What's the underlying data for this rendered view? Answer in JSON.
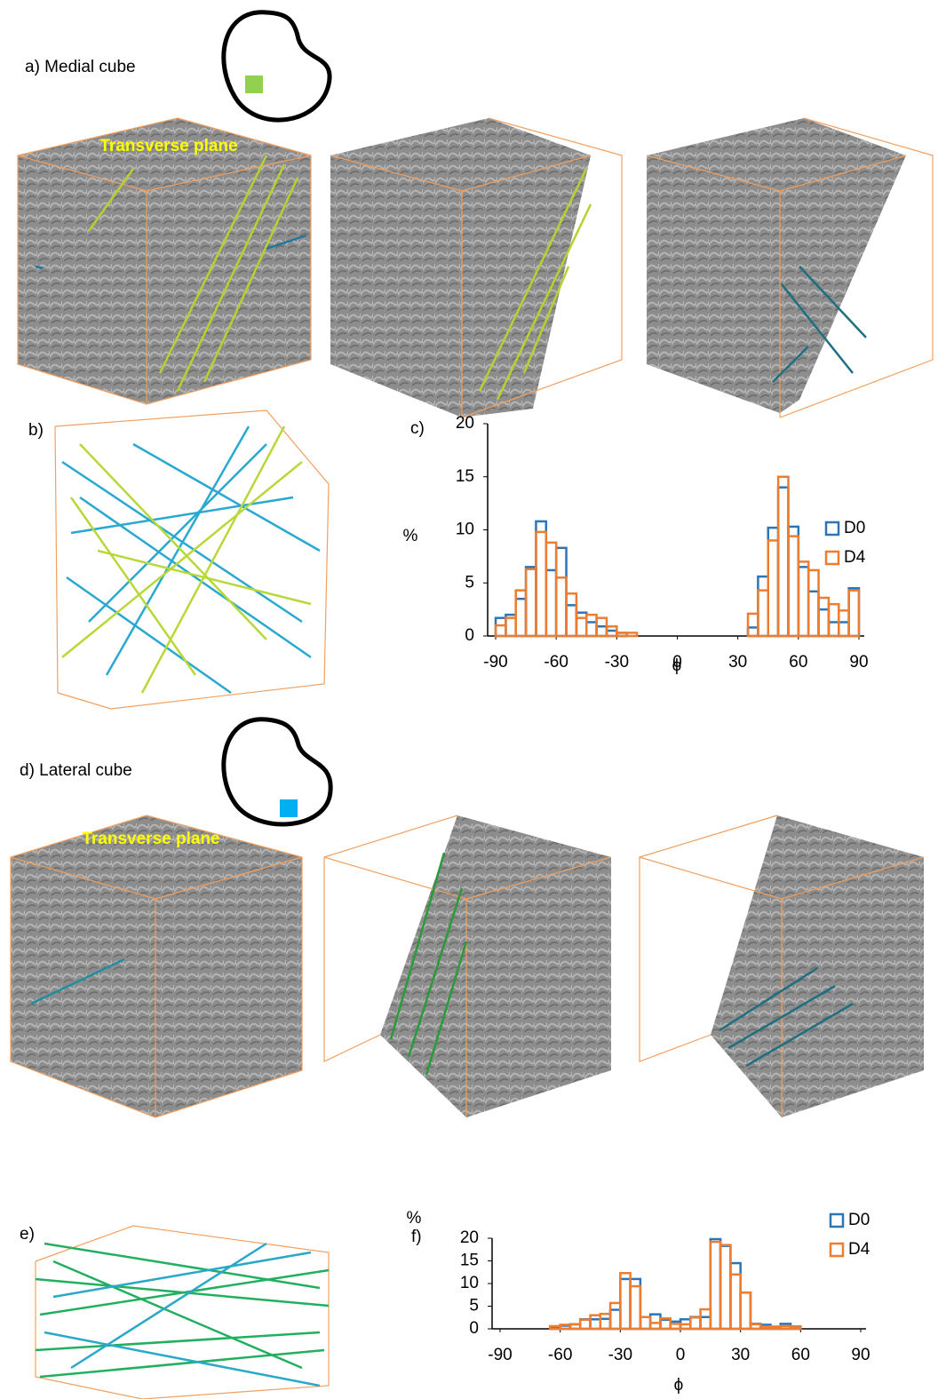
{
  "panels": {
    "a": "a) Medial cube",
    "transverse_1": "Transverse plane",
    "b": "b)",
    "d": "d) Lateral cube",
    "transverse_2": "Transverse plane",
    "e": "e)"
  },
  "chart_data": [
    {
      "type": "histogram",
      "label": "c)",
      "x_label": "ϕ",
      "y_label": "%",
      "bins": [
        -90,
        -85,
        -80,
        -75,
        -70,
        -65,
        -60,
        -55,
        -50,
        -45,
        -40,
        -35,
        -30,
        -25,
        -20,
        -15,
        -10,
        -5,
        0,
        5,
        10,
        15,
        20,
        25,
        30,
        35,
        40,
        45,
        50,
        55,
        60,
        65,
        70,
        75,
        80,
        85,
        90
      ],
      "series": [
        {
          "name": "D0",
          "color": "#2e75b6",
          "values": [
            1.7,
            2.0,
            3.5,
            6.5,
            10.8,
            6.2,
            8.3,
            2.9,
            2.2,
            1.3,
            0.9,
            0.5,
            0.3,
            0,
            0,
            0,
            0,
            0,
            0,
            0,
            0,
            0,
            0,
            0,
            0,
            0.8,
            5.6,
            10.2,
            14.0,
            10.3,
            6.5,
            4.2,
            2.5,
            1.3,
            1.3,
            4.5
          ]
        },
        {
          "name": "D4",
          "color": "#ed7d31",
          "values": [
            1.0,
            1.7,
            4.3,
            6.3,
            9.8,
            8.8,
            5.5,
            4.0,
            1.7,
            2.0,
            1.7,
            0.9,
            0.3,
            0.3,
            0,
            0,
            0,
            0,
            0,
            0,
            0,
            0,
            0,
            0,
            0,
            2.1,
            4.3,
            9.0,
            15.0,
            9.4,
            7.0,
            6.2,
            3.6,
            3.0,
            2.4,
            4.3
          ]
        }
      ],
      "xlim": [
        -90,
        90
      ],
      "xticks": [
        -90,
        -60,
        -30,
        0,
        30,
        60,
        90
      ],
      "ylim": [
        0,
        20
      ],
      "yticks": [
        0,
        5,
        10,
        15,
        20
      ],
      "legend": "right"
    },
    {
      "type": "histogram",
      "label": "f)",
      "x_label": "ϕ",
      "y_label": "%",
      "bins": [
        -90,
        -85,
        -80,
        -75,
        -70,
        -65,
        -60,
        -55,
        -50,
        -45,
        -40,
        -35,
        -30,
        -25,
        -20,
        -15,
        -10,
        -5,
        0,
        5,
        10,
        15,
        20,
        25,
        30,
        35,
        40,
        45,
        50,
        55,
        60,
        65,
        70,
        75,
        80,
        85,
        90
      ],
      "series": [
        {
          "name": "D0",
          "color": "#2e75b6",
          "values": [
            0,
            0,
            0,
            0,
            0,
            0.4,
            0.7,
            1.0,
            2.1,
            2.1,
            2.2,
            4.2,
            11.0,
            11.0,
            2.6,
            3.2,
            2.0,
            1.6,
            2.1,
            2.6,
            2.6,
            19.8,
            18.3,
            14.5,
            8.0,
            1.1,
            0.9,
            0.3,
            1.1,
            0.5,
            0,
            0,
            0,
            0,
            0,
            0
          ]
        },
        {
          "name": "D4",
          "color": "#ed7d31",
          "values": [
            0,
            0,
            0,
            0,
            0,
            0.6,
            0.9,
            1.0,
            2.0,
            3.0,
            3.3,
            5.7,
            12.3,
            9.4,
            2.6,
            1.3,
            2.3,
            1.1,
            1.0,
            2.5,
            4.3,
            19.2,
            18.5,
            12.0,
            8.0,
            1.0,
            0.5,
            0.5,
            0.6,
            0.4,
            0,
            0,
            0,
            0,
            0,
            0
          ]
        }
      ],
      "xlim": [
        -90,
        90
      ],
      "xticks": [
        -90,
        -60,
        -30,
        0,
        30,
        60,
        90
      ],
      "ylim": [
        0,
        20
      ],
      "yticks": [
        0,
        5,
        10,
        15,
        20
      ],
      "legend": "right"
    }
  ]
}
